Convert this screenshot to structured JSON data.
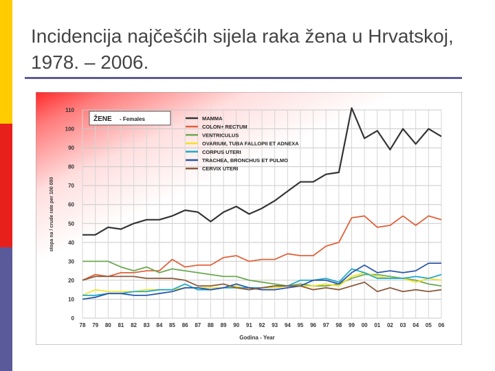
{
  "slide": {
    "title": "Incidencija najčešćih sijela raka žena u Hrvatskoj, 1978. – 2006.",
    "accent_colors": [
      "#ffcc00",
      "#e8201c",
      "#5a5a9a"
    ]
  },
  "chart_data": {
    "type": "line",
    "legend_title": "ŽENE",
    "legend_subtitle": "Females",
    "ylabel": "stopa na / crude rate per 100 000",
    "xlabel": "Godina",
    "xlabel_en": "Year",
    "ylim": [
      0,
      110
    ],
    "yticks": [
      0,
      10,
      20,
      30,
      40,
      50,
      60,
      70,
      80,
      90,
      100,
      110
    ],
    "grid": true,
    "legend_position": "top-left",
    "categories": [
      "78",
      "79",
      "80",
      "81",
      "82",
      "83",
      "84",
      "85",
      "86",
      "87",
      "88",
      "89",
      "90",
      "91",
      "92",
      "93",
      "94",
      "95",
      "96",
      "97",
      "98",
      "99",
      "00",
      "01",
      "02",
      "03",
      "04",
      "05",
      "06"
    ],
    "series": [
      {
        "name": "MAMMA",
        "color": "#333333",
        "values": [
          44,
          44,
          48,
          47,
          50,
          52,
          52,
          54,
          57,
          56,
          51,
          56,
          59,
          55,
          58,
          62,
          67,
          72,
          72,
          76,
          77,
          111,
          95,
          99,
          89,
          100,
          92,
          100,
          96
        ]
      },
      {
        "name": "COLON+ RECTUM",
        "color": "#e0603a",
        "values": [
          20,
          23,
          22,
          24,
          24,
          25,
          25,
          31,
          27,
          28,
          28,
          32,
          33,
          30,
          31,
          31,
          34,
          33,
          33,
          38,
          40,
          53,
          54,
          48,
          49,
          54,
          49,
          54,
          52
        ]
      },
      {
        "name": "VENTRICULUS",
        "color": "#6aa84f",
        "values": [
          30,
          30,
          30,
          27,
          25,
          27,
          24,
          26,
          25,
          24,
          23,
          22,
          22,
          20,
          19,
          18,
          17,
          18,
          17,
          17,
          18,
          21,
          23,
          23,
          22,
          21,
          20,
          18,
          17
        ]
      },
      {
        "name": "OVARIUM, TUBA FALLOPII ET ADNEXA",
        "color": "#f2e22a",
        "values": [
          12,
          15,
          14,
          14,
          14,
          15,
          15,
          15,
          16,
          16,
          16,
          16,
          17,
          15,
          16,
          16,
          17,
          17,
          17,
          18,
          17,
          22,
          24,
          22,
          21,
          21,
          19,
          21,
          20
        ]
      },
      {
        "name": "CORPUS UTERI",
        "color": "#1fa9c9",
        "values": [
          12,
          12,
          13,
          13,
          14,
          14,
          15,
          15,
          18,
          15,
          15,
          16,
          16,
          16,
          16,
          17,
          17,
          20,
          20,
          21,
          19,
          26,
          24,
          21,
          21,
          21,
          22,
          21,
          23
        ]
      },
      {
        "name": "TRACHEA, BRONCHUS ET PULMO",
        "color": "#2a55a8",
        "values": [
          10,
          11,
          13,
          13,
          12,
          12,
          13,
          14,
          16,
          16,
          15,
          16,
          18,
          16,
          15,
          15,
          16,
          17,
          20,
          20,
          18,
          24,
          28,
          24,
          25,
          24,
          25,
          29,
          29
        ]
      },
      {
        "name": "CERVIX UTERI",
        "color": "#8a5a3c",
        "values": [
          20,
          22,
          22,
          22,
          22,
          21,
          21,
          21,
          20,
          17,
          17,
          18,
          16,
          15,
          16,
          17,
          17,
          17,
          15,
          16,
          15,
          17,
          19,
          14,
          16,
          14,
          15,
          14,
          15
        ]
      }
    ]
  }
}
